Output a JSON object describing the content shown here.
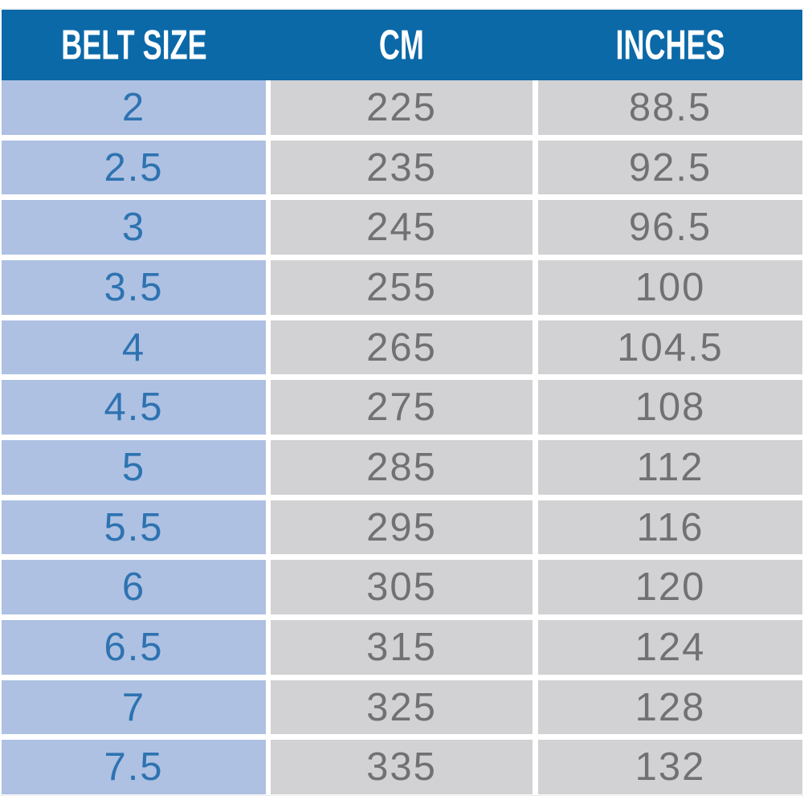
{
  "chart_data": {
    "type": "table",
    "columns": [
      "BELT SIZE",
      "CM",
      "INCHES"
    ],
    "rows": [
      [
        "2",
        "225",
        "88.5"
      ],
      [
        "2.5",
        "235",
        "92.5"
      ],
      [
        "3",
        "245",
        "96.5"
      ],
      [
        "3.5",
        "255",
        "100"
      ],
      [
        "4",
        "265",
        "104.5"
      ],
      [
        "4.5",
        "275",
        "108"
      ],
      [
        "5",
        "285",
        "112"
      ],
      [
        "5.5",
        "295",
        "116"
      ],
      [
        "6",
        "305",
        "120"
      ],
      [
        "6.5",
        "315",
        "124"
      ],
      [
        "7",
        "325",
        "128"
      ],
      [
        "7.5",
        "335",
        "132"
      ]
    ]
  },
  "colors": {
    "header_bg": "#0b69a8",
    "header_text": "#ffffff",
    "size_column_bg": "#aec1e2",
    "size_column_text": "#2e73b1",
    "value_column_bg": "#d2d2d4",
    "value_column_text": "#717175",
    "separator": "#ffffff"
  }
}
